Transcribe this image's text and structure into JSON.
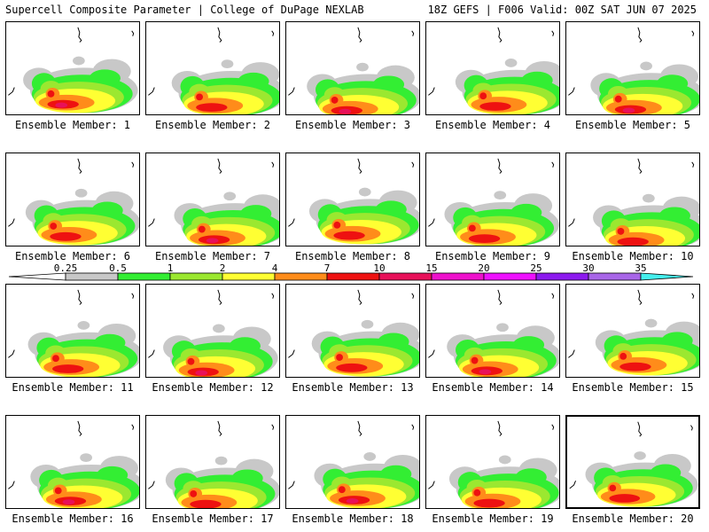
{
  "header": {
    "left_title": "Supercell Composite Parameter | College of DuPage NEXLAB",
    "right_title": "18Z GEFS | F006 Valid: 00Z SAT JUN 07 2025"
  },
  "members": [
    {
      "label": "Ensemble Member: 1",
      "number": 1
    },
    {
      "label": "Ensemble Member: 2",
      "number": 2
    },
    {
      "label": "Ensemble Member: 3",
      "number": 3
    },
    {
      "label": "Ensemble Member: 4",
      "number": 4
    },
    {
      "label": "Ensemble Member: 5",
      "number": 5
    },
    {
      "label": "Ensemble Member: 6",
      "number": 6
    },
    {
      "label": "Ensemble Member: 7",
      "number": 7
    },
    {
      "label": "Ensemble Member: 8",
      "number": 8
    },
    {
      "label": "Ensemble Member: 9",
      "number": 9
    },
    {
      "label": "Ensemble Member: 10",
      "number": 10
    },
    {
      "label": "Ensemble Member: 11",
      "number": 11
    },
    {
      "label": "Ensemble Member: 12",
      "number": 12
    },
    {
      "label": "Ensemble Member: 13",
      "number": 13
    },
    {
      "label": "Ensemble Member: 14",
      "number": 14
    },
    {
      "label": "Ensemble Member: 15",
      "number": 15
    },
    {
      "label": "Ensemble Member: 16",
      "number": 16
    },
    {
      "label": "Ensemble Member: 17",
      "number": 17
    },
    {
      "label": "Ensemble Member: 18",
      "number": 18
    },
    {
      "label": "Ensemble Member: 19",
      "number": 19
    },
    {
      "label": "Ensemble Member: 20",
      "number": 20
    }
  ],
  "chart_data": {
    "type": "heatmap",
    "title": "Supercell Composite Parameter",
    "colorbar": {
      "tick_labels": [
        "0.25",
        "0.5",
        "1",
        "2",
        "4",
        "7",
        "10",
        "15",
        "20",
        "25",
        "30",
        "35"
      ],
      "bins": [
        {
          "min": 0.25,
          "max": 0.5,
          "color": "#c8c8c8"
        },
        {
          "min": 0.5,
          "max": 1,
          "color": "#33ee33"
        },
        {
          "min": 1,
          "max": 2,
          "color": "#9be830"
        },
        {
          "min": 2,
          "max": 4,
          "color": "#ffff33"
        },
        {
          "min": 4,
          "max": 7,
          "color": "#ff8c1a"
        },
        {
          "min": 7,
          "max": 10,
          "color": "#ee1111"
        },
        {
          "min": 10,
          "max": 15,
          "color": "#e8115a"
        },
        {
          "min": 15,
          "max": 20,
          "color": "#ee11cc"
        },
        {
          "min": 20,
          "max": 25,
          "color": "#ee11ff"
        },
        {
          "min": 25,
          "max": 30,
          "color": "#8c1aee"
        },
        {
          "min": 30,
          "max": 35,
          "color": "#a866e8"
        },
        {
          "min": 35,
          "max": null,
          "color": "#44f0ee"
        }
      ]
    },
    "panels": 20
  }
}
